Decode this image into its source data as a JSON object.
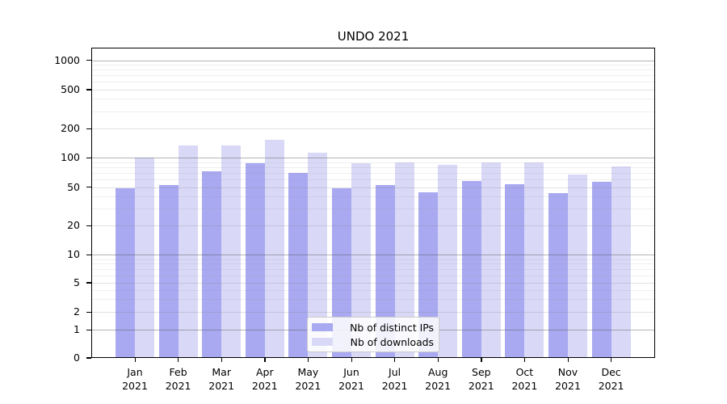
{
  "chart_data": {
    "type": "bar",
    "title": "UNDO 2021",
    "categories": [
      "Jan 2021",
      "Feb 2021",
      "Mar 2021",
      "Apr 2021",
      "May 2021",
      "Jun 2021",
      "Jul 2021",
      "Aug 2021",
      "Sep 2021",
      "Oct 2021",
      "Nov 2021",
      "Dec 2021"
    ],
    "series": [
      {
        "name": "Nb of distinct IPs",
        "color": "#a9a9f1",
        "values": [
          49,
          52,
          72,
          88,
          70,
          49,
          52,
          44,
          58,
          53,
          43,
          57
        ]
      },
      {
        "name": "Nb of downloads",
        "color": "#d9d9f7",
        "values": [
          100,
          135,
          135,
          152,
          113,
          87,
          90,
          85,
          90,
          89,
          67,
          82
        ]
      }
    ],
    "xlabel": "",
    "ylabel": "",
    "ylim": [
      0,
      1000
    ],
    "yscale": "log-like with zero baseline",
    "yticks": [
      0,
      1,
      2,
      5,
      10,
      20,
      50,
      100,
      200,
      500,
      1000
    ],
    "ytick_labels": [
      "0",
      "1",
      "2",
      "5",
      "10",
      "20",
      "50",
      "100",
      "200",
      "500",
      "1000"
    ],
    "grid": "horizontal major gray + faint minor lines",
    "legend_position": "bottom-center",
    "background_color": "#ffffff",
    "frame_color": "#000000"
  }
}
